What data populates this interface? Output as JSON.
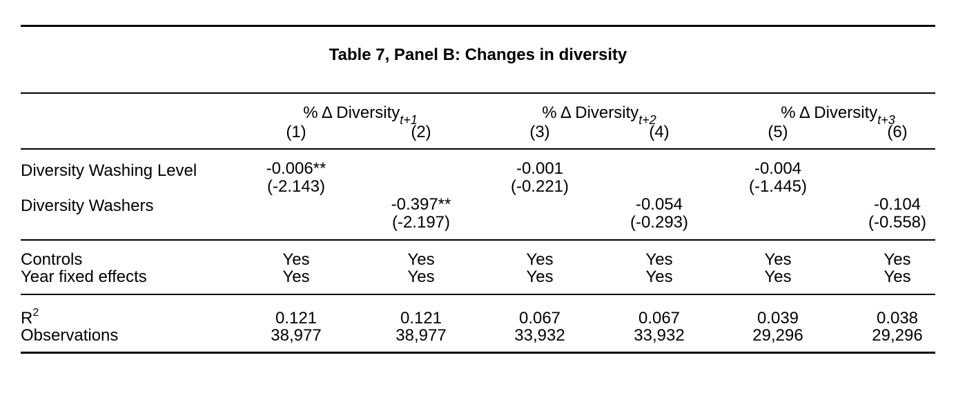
{
  "table": {
    "title": "Table 7, Panel B: Changes in diversity",
    "groups": [
      {
        "label": "% Δ Diversity",
        "sub": "t+1"
      },
      {
        "label": "% Δ Diversity",
        "sub": "t+2"
      },
      {
        "label": "% Δ Diversity",
        "sub": "t+3"
      }
    ],
    "columns": [
      "(1)",
      "(2)",
      "(3)",
      "(4)",
      "(5)",
      "(6)"
    ],
    "rows": {
      "dwl": {
        "label": "Diversity Washing Level",
        "c1": "-0.006**",
        "c1t": "(-2.143)",
        "c3": "-0.001",
        "c3t": "(-0.221)",
        "c5": "-0.004",
        "c5t": "(-1.445)"
      },
      "dw": {
        "label": "Diversity Washers",
        "c2": "-0.397**",
        "c2t": "(-2.197)",
        "c4": "-0.054",
        "c4t": "(-0.293)",
        "c6": "-0.104",
        "c6t": "(-0.558)"
      },
      "controls": {
        "label": "Controls",
        "values": [
          "Yes",
          "Yes",
          "Yes",
          "Yes",
          "Yes",
          "Yes"
        ]
      },
      "yfe": {
        "label": "Year fixed effects",
        "values": [
          "Yes",
          "Yes",
          "Yes",
          "Yes",
          "Yes",
          "Yes"
        ]
      },
      "r2": {
        "label": "R",
        "sup": "2",
        "values": [
          "0.121",
          "0.121",
          "0.067",
          "0.067",
          "0.039",
          "0.038"
        ]
      },
      "obs": {
        "label": "Observations",
        "values": [
          "38,977",
          "38,977",
          "33,932",
          "33,932",
          "29,296",
          "29,296"
        ]
      }
    }
  }
}
